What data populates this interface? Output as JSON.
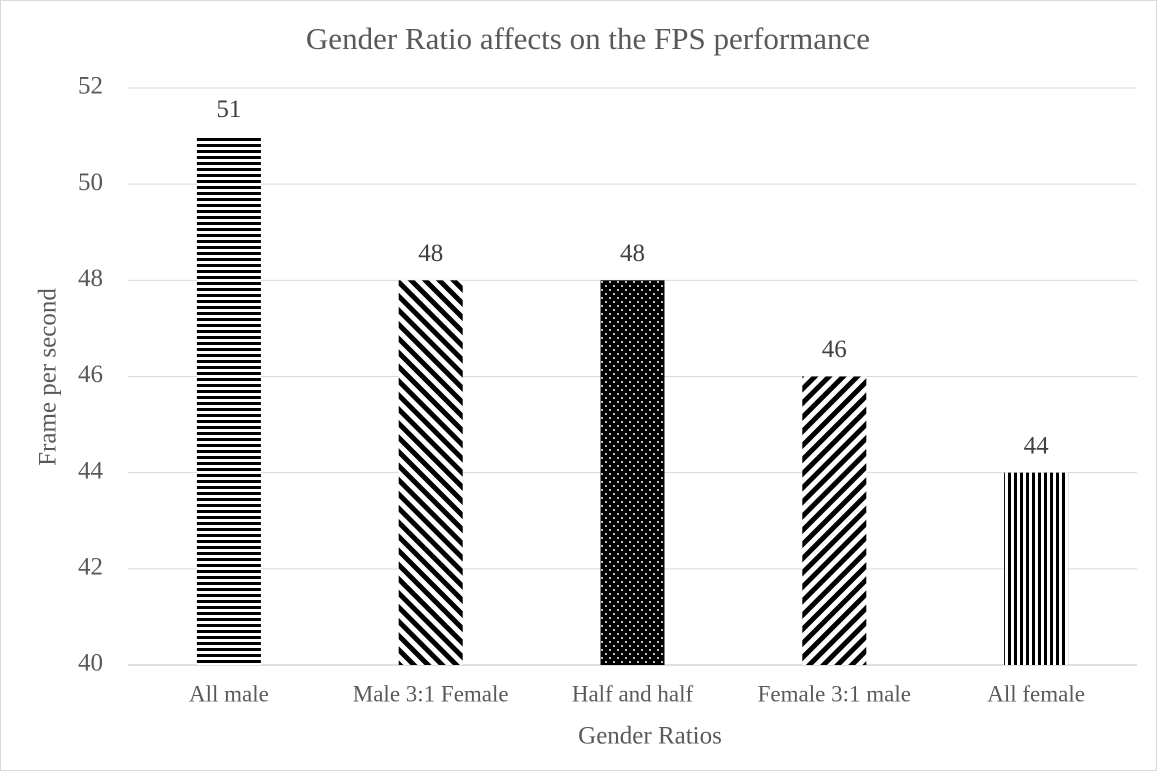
{
  "chart_data": {
    "type": "bar",
    "title": "Gender Ratio affects on the FPS performance",
    "x_label": "Gender Ratios",
    "y_label": "Frame per second",
    "categories": [
      "All male",
      "Male 3:1 Female",
      "Half and half",
      "Female 3:1 male",
      "All female"
    ],
    "values": [
      51,
      48,
      48,
      46,
      44
    ],
    "color": "#000000",
    "patterns": [
      "horizontal",
      "back-diagonal",
      "dots",
      "diagonal",
      "vertical"
    ],
    "ylim": [
      40,
      52
    ],
    "yticks": [
      40,
      42,
      44,
      46,
      48,
      50,
      52
    ],
    "grid": true
  }
}
